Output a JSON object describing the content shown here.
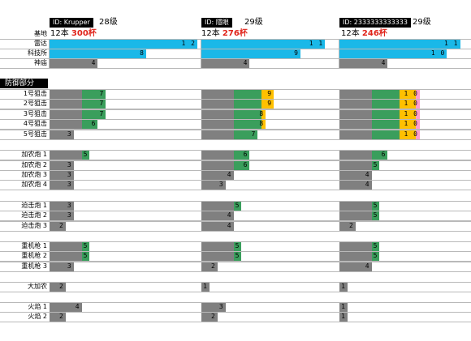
{
  "players": [
    {
      "id_label": "ID: Krupper",
      "level": "28级",
      "count_text": "12本",
      "cups": "300杯"
    },
    {
      "id_label": "ID: 隱眼",
      "level": "29级",
      "count_text": "12本",
      "cups": "276杯"
    },
    {
      "id_label": "ID: 2333333333333",
      "level": "29级",
      "count_text": "12本",
      "cups": "246杯"
    }
  ],
  "base_label": "基地",
  "defense_section_label": "防御部分",
  "colors": {
    "cyan": "#1ab8e8",
    "gray": "#808080",
    "green": "#3a9e5c",
    "yellow": "#ffc000",
    "pink": "#ff9ccd"
  },
  "rows": [
    {
      "label": "雷达",
      "group": 0,
      "values": [
        "12",
        "11",
        "11"
      ]
    },
    {
      "label": "科技所",
      "group": 0,
      "values": [
        "8",
        "9",
        "10"
      ]
    },
    {
      "label": "神庙",
      "group": 0,
      "values": [
        "4",
        "4",
        "4"
      ]
    },
    {
      "label": "1号狙击",
      "group": 1,
      "values": [
        "7",
        "9",
        "10"
      ]
    },
    {
      "label": "2号狙击",
      "group": 1,
      "values": [
        "7",
        "9",
        "10"
      ]
    },
    {
      "label": "3号狙击",
      "group": 1,
      "values": [
        "7",
        "8",
        "10"
      ]
    },
    {
      "label": "4号狙击",
      "group": 1,
      "values": [
        "6",
        "8",
        "10"
      ]
    },
    {
      "label": "5号狙击",
      "group": 1,
      "values": [
        "3",
        "7",
        "10"
      ]
    },
    {
      "label": "加农炮 1",
      "group": 2,
      "values": [
        "5",
        "6",
        "6"
      ]
    },
    {
      "label": "加农炮 2",
      "group": 2,
      "values": [
        "3",
        "6",
        "5"
      ]
    },
    {
      "label": "加农炮 3",
      "group": 2,
      "values": [
        "3",
        "4",
        "4"
      ]
    },
    {
      "label": "加农炮 4",
      "group": 2,
      "values": [
        "3",
        "3",
        "4"
      ]
    },
    {
      "label": "迫击炮 1",
      "group": 3,
      "values": [
        "3",
        "5",
        "5"
      ]
    },
    {
      "label": "迫击炮 2",
      "group": 3,
      "values": [
        "3",
        "4",
        "5"
      ]
    },
    {
      "label": "迫击炮 3",
      "group": 3,
      "values": [
        "2",
        "4",
        "2"
      ]
    },
    {
      "label": "重机枪 1",
      "group": 4,
      "values": [
        "5",
        "5",
        "5"
      ]
    },
    {
      "label": "重机枪 2",
      "group": 4,
      "values": [
        "5",
        "5",
        "5"
      ]
    },
    {
      "label": "重机枪 3",
      "group": 4,
      "values": [
        "3",
        "2",
        "4"
      ]
    },
    {
      "label": "大加农",
      "group": 5,
      "values": [
        "2",
        "1",
        "1"
      ]
    },
    {
      "label": "火焰 1",
      "group": 6,
      "values": [
        "4",
        "3",
        "1"
      ]
    },
    {
      "label": "火焰 2",
      "group": 6,
      "values": [
        "2",
        "2",
        "1"
      ]
    }
  ]
}
